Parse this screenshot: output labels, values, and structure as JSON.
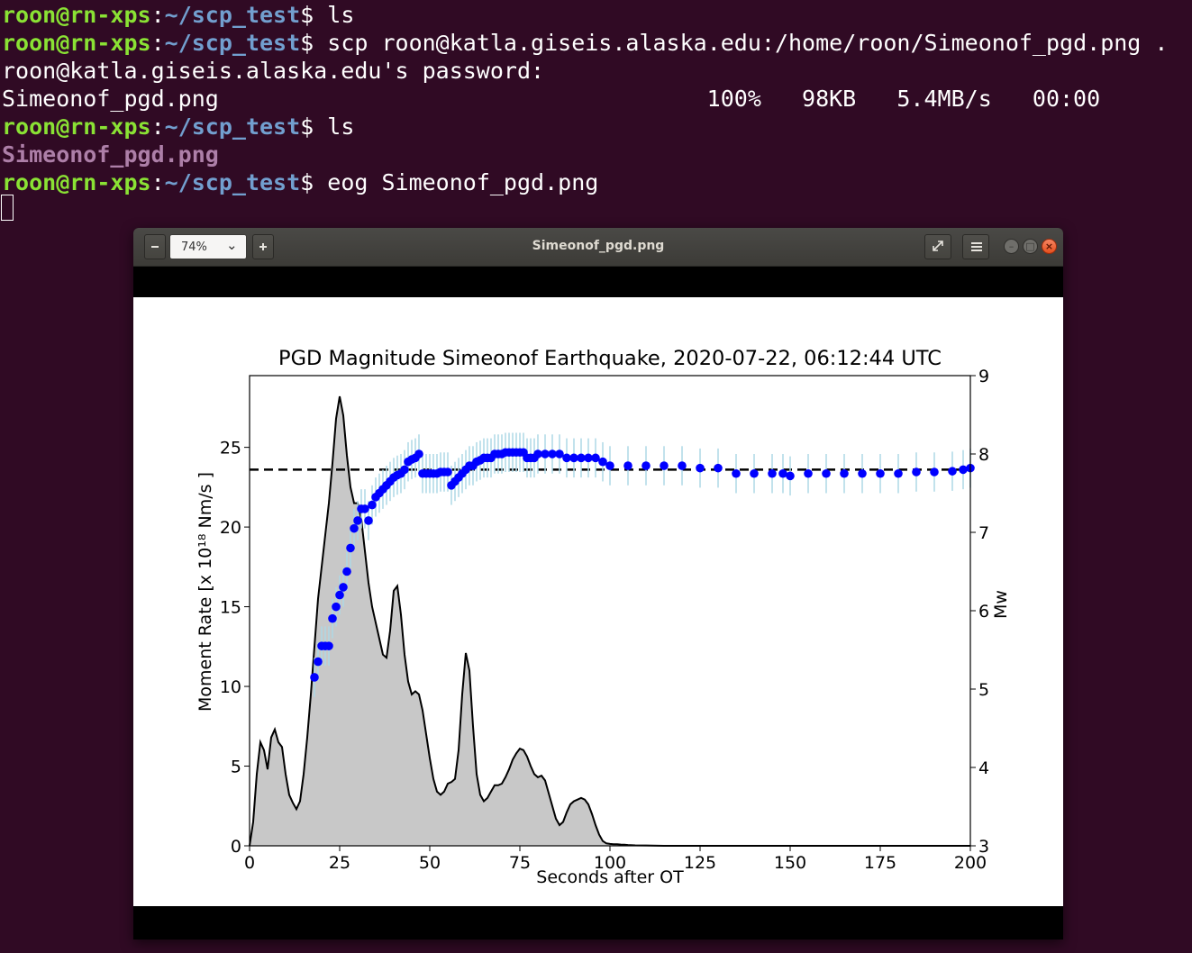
{
  "terminal": {
    "prompt_user": "roon@rn-xps",
    "prompt_sep": ":",
    "prompt_path": "~/scp_test",
    "prompt_sign": "$ ",
    "lines": [
      {
        "type": "cmd",
        "text": "ls"
      },
      {
        "type": "cmd",
        "text": "scp roon@katla.giseis.alaska.edu:/home/roon/Simeonof_pgd.png ."
      },
      {
        "type": "out",
        "text": "roon@katla.giseis.alaska.edu's password:"
      },
      {
        "type": "out",
        "text": "Simeonof_pgd.png                                    100%   98KB   5.4MB/s   00:00"
      },
      {
        "type": "cmd",
        "text": "ls"
      },
      {
        "type": "file",
        "text": "Simeonof_pgd.png"
      },
      {
        "type": "cmd",
        "text": "eog Simeonof_pgd.png"
      }
    ]
  },
  "viewer": {
    "title": "Simeonof_pgd.png",
    "zoom": "74%",
    "icons": {
      "zoom_out": "minus-icon",
      "zoom_in": "plus-icon",
      "dropdown": "chevron-down-icon",
      "fullscreen": "fullscreen-icon",
      "menu": "hamburger-menu-icon",
      "minimize": "minimize-icon",
      "maximize": "maximize-icon",
      "close": "close-icon"
    }
  },
  "colors": {
    "terminal_bg": "#300a24",
    "prompt_user": "#8ae234",
    "prompt_path": "#729fcf",
    "file_listing": "#ad7fa8",
    "mw_points": "#0000ff",
    "error_bars": "#add8e6",
    "moment_fill": "#c8c8c8"
  },
  "chart_data": {
    "type": "area",
    "title": "PGD Magnitude Simeonof Earthquake, 2020-07-22, 06:12:44 UTC",
    "xlabel": "Seconds after OT",
    "ylabel_left": "Moment Rate [x 10¹⁸ Nm/s ]",
    "ylabel_right": "Mw",
    "xlim": [
      0,
      200
    ],
    "ylim_left": [
      0,
      29.5
    ],
    "ylim_right": [
      3,
      9
    ],
    "x_ticks": [
      0,
      25,
      50,
      75,
      100,
      125,
      150,
      175,
      200
    ],
    "y_ticks_left": [
      0,
      5,
      10,
      15,
      20,
      25
    ],
    "y_ticks_right": [
      3,
      4,
      5,
      6,
      7,
      8,
      9
    ],
    "reference_mw": 7.8,
    "moment_rate": {
      "x": [
        0,
        1,
        2,
        3,
        4,
        5,
        6,
        7,
        8,
        9,
        10,
        11,
        12,
        13,
        14,
        15,
        16,
        17,
        18,
        19,
        20,
        21,
        22,
        23,
        24,
        25,
        26,
        27,
        28,
        29,
        30,
        31,
        32,
        33,
        34,
        35,
        36,
        37,
        38,
        39,
        40,
        41,
        42,
        43,
        44,
        45,
        46,
        47,
        48,
        49,
        50,
        51,
        52,
        53,
        54,
        55,
        56,
        57,
        58,
        59,
        60,
        61,
        62,
        63,
        64,
        65,
        66,
        67,
        68,
        69,
        70,
        71,
        72,
        73,
        74,
        75,
        76,
        77,
        78,
        79,
        80,
        81,
        82,
        83,
        84,
        85,
        86,
        87,
        88,
        89,
        90,
        91,
        92,
        93,
        94,
        95,
        96,
        97,
        98,
        99,
        100,
        101,
        102,
        103,
        104,
        105,
        107,
        110,
        115,
        120,
        130,
        150,
        175,
        200
      ],
      "y": [
        0,
        1.5,
        4.5,
        6.5,
        6.0,
        4.8,
        6.8,
        7.3,
        6.5,
        6.2,
        4.5,
        3.2,
        2.7,
        2.3,
        2.8,
        4.5,
        6.8,
        9.5,
        12.5,
        15.5,
        17.5,
        19.5,
        21.5,
        24.0,
        26.8,
        28.2,
        27.0,
        24.5,
        22.5,
        21.5,
        21.5,
        20.5,
        18.5,
        16.5,
        15.0,
        14.0,
        13.0,
        12.0,
        11.8,
        13.5,
        16.0,
        16.3,
        14.5,
        12.0,
        10.3,
        9.5,
        9.7,
        9.5,
        8.5,
        7.0,
        5.5,
        4.2,
        3.4,
        3.2,
        3.4,
        3.9,
        4.0,
        4.2,
        6.0,
        9.5,
        12.1,
        11.0,
        7.5,
        4.5,
        3.2,
        2.8,
        3.0,
        3.4,
        3.8,
        3.8,
        3.9,
        4.3,
        4.8,
        5.4,
        5.8,
        6.1,
        6.0,
        5.6,
        5.0,
        4.5,
        4.3,
        4.4,
        4.1,
        3.3,
        2.5,
        1.7,
        1.3,
        1.5,
        2.1,
        2.6,
        2.8,
        2.9,
        3.0,
        2.9,
        2.6,
        2.0,
        1.3,
        0.7,
        0.3,
        0.15,
        0.12,
        0.1,
        0.1,
        0.08,
        0.07,
        0.05,
        0.03,
        0.02,
        0.0,
        0.0,
        0.0,
        0.0,
        0.0,
        0.0
      ]
    },
    "mw_series": {
      "x": [
        18,
        19,
        20,
        21,
        22,
        23,
        24,
        25,
        26,
        27,
        28,
        29,
        30,
        31,
        32,
        33,
        34,
        35,
        36,
        37,
        38,
        39,
        40,
        41,
        42,
        43,
        44,
        45,
        46,
        47,
        48,
        49,
        50,
        51,
        52,
        53,
        54,
        55,
        56,
        57,
        58,
        59,
        60,
        61,
        62,
        63,
        64,
        65,
        66,
        67,
        68,
        69,
        70,
        71,
        72,
        73,
        74,
        75,
        76,
        77,
        78,
        79,
        80,
        82,
        84,
        86,
        88,
        90,
        92,
        94,
        96,
        98,
        100,
        105,
        110,
        115,
        120,
        125,
        130,
        135,
        140,
        145,
        148,
        150,
        155,
        160,
        165,
        170,
        175,
        180,
        185,
        190,
        195,
        198,
        200
      ],
      "y": [
        5.15,
        5.35,
        5.55,
        5.55,
        5.55,
        5.9,
        6.05,
        6.2,
        6.3,
        6.5,
        6.8,
        7.05,
        7.15,
        7.3,
        7.3,
        7.15,
        7.35,
        7.45,
        7.5,
        7.55,
        7.6,
        7.65,
        7.7,
        7.73,
        7.75,
        7.8,
        7.9,
        7.93,
        7.95,
        8.0,
        7.75,
        7.75,
        7.75,
        7.75,
        7.75,
        7.77,
        7.77,
        7.77,
        7.6,
        7.65,
        7.7,
        7.75,
        7.8,
        7.85,
        7.85,
        7.9,
        7.92,
        7.95,
        7.95,
        7.95,
        8.0,
        8.0,
        8.0,
        8.02,
        8.02,
        8.02,
        8.02,
        8.02,
        8.02,
        7.95,
        7.95,
        7.95,
        8.0,
        8.0,
        8.0,
        8.0,
        7.95,
        7.95,
        7.95,
        7.95,
        7.95,
        7.9,
        7.85,
        7.85,
        7.85,
        7.85,
        7.85,
        7.82,
        7.82,
        7.75,
        7.75,
        7.75,
        7.75,
        7.72,
        7.75,
        7.75,
        7.75,
        7.75,
        7.75,
        7.75,
        7.77,
        7.77,
        7.78,
        7.8,
        7.82
      ],
      "error_halfwidth": 0.25
    }
  }
}
